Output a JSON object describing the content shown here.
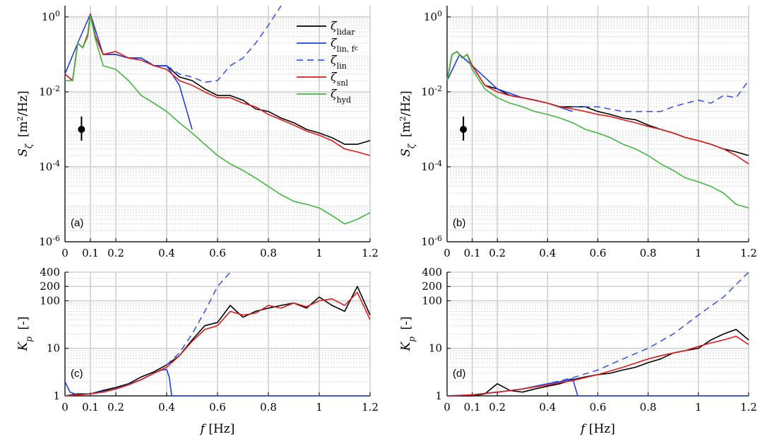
{
  "chart_data": [
    {
      "panel": "(a)",
      "type": "line",
      "yscale": "log",
      "xlim": [
        0,
        1.2
      ],
      "ylim": [
        1e-06,
        2
      ],
      "xticks": [
        0,
        0.1,
        0.2,
        0.4,
        0.6,
        0.8,
        1,
        1.2
      ],
      "xtick_labels": [
        "0",
        "0.1",
        "0.2",
        "0.4",
        "0.6",
        "0.8",
        "1",
        "1.2"
      ],
      "yticks": [
        1e-06,
        0.0001,
        0.01,
        1
      ],
      "ytick_labels": [
        [
          "10",
          "-6"
        ],
        [
          "10",
          "-4"
        ],
        [
          "10",
          "-2"
        ],
        [
          "10",
          "0"
        ]
      ],
      "ylabel": "S_ζ [m²/Hz]",
      "grid": true,
      "legend": "top-right",
      "errorbar": {
        "x": 0.065,
        "y": 0.001,
        "ylow": 0.0005,
        "yhigh": 0.0022
      },
      "series": [
        {
          "name": "ζ lidar",
          "color": "#000000",
          "x": [
            0,
            0.03,
            0.05,
            0.07,
            0.09,
            0.1,
            0.12,
            0.15,
            0.2,
            0.25,
            0.3,
            0.35,
            0.4,
            0.45,
            0.5,
            0.55,
            0.6,
            0.65,
            0.7,
            0.75,
            0.8,
            0.85,
            0.9,
            0.95,
            1.0,
            1.05,
            1.1,
            1.15,
            1.2
          ],
          "y": [
            0.03,
            0.02,
            0.2,
            0.15,
            0.35,
            1.2,
            0.3,
            0.1,
            0.1,
            0.08,
            0.08,
            0.05,
            0.05,
            0.025,
            0.02,
            0.012,
            0.008,
            0.008,
            0.006,
            0.0035,
            0.003,
            0.002,
            0.0015,
            0.001,
            0.0008,
            0.0006,
            0.0004,
            0.0004,
            0.0005
          ]
        },
        {
          "name": "ζ lin, f_c",
          "color": "#1f3fe0",
          "x": [
            0,
            0.05,
            0.1,
            0.15,
            0.2,
            0.25,
            0.3,
            0.35,
            0.4,
            0.45,
            0.5
          ],
          "y": [
            0.03,
            0.2,
            1.2,
            0.1,
            0.1,
            0.08,
            0.08,
            0.05,
            0.05,
            0.015,
            0.001
          ]
        },
        {
          "name": "ζ lin",
          "color": "#3b57e6",
          "dash": true,
          "x": [
            0.4,
            0.45,
            0.5,
            0.55,
            0.6,
            0.65,
            0.7,
            0.75,
            0.8,
            0.85
          ],
          "y": [
            0.05,
            0.03,
            0.025,
            0.018,
            0.02,
            0.05,
            0.08,
            0.2,
            0.6,
            2.0
          ]
        },
        {
          "name": "ζ snl",
          "color": "#e01b1b",
          "x": [
            0,
            0.03,
            0.05,
            0.07,
            0.09,
            0.1,
            0.12,
            0.15,
            0.2,
            0.25,
            0.3,
            0.35,
            0.4,
            0.45,
            0.5,
            0.55,
            0.6,
            0.65,
            0.7,
            0.75,
            0.8,
            0.85,
            0.9,
            0.95,
            1.0,
            1.05,
            1.1,
            1.15,
            1.2
          ],
          "y": [
            0.03,
            0.02,
            0.2,
            0.15,
            0.35,
            1.2,
            0.3,
            0.1,
            0.12,
            0.08,
            0.07,
            0.05,
            0.04,
            0.02,
            0.015,
            0.01,
            0.007,
            0.007,
            0.005,
            0.004,
            0.0025,
            0.0018,
            0.0013,
            0.0009,
            0.0007,
            0.0005,
            0.0003,
            0.00025,
            0.0002
          ]
        },
        {
          "name": "ζ hyd",
          "color": "#3fb83f",
          "x": [
            0,
            0.03,
            0.05,
            0.07,
            0.09,
            0.1,
            0.12,
            0.15,
            0.2,
            0.25,
            0.3,
            0.35,
            0.4,
            0.45,
            0.5,
            0.55,
            0.6,
            0.65,
            0.7,
            0.75,
            0.8,
            0.85,
            0.9,
            0.95,
            1.0,
            1.05,
            1.1,
            1.15,
            1.2
          ],
          "y": [
            0.02,
            0.02,
            0.2,
            0.15,
            0.3,
            1.1,
            0.25,
            0.05,
            0.04,
            0.02,
            0.008,
            0.005,
            0.003,
            0.0015,
            0.0008,
            0.0004,
            0.0002,
            0.00012,
            8e-05,
            5e-05,
            3e-05,
            1.8e-05,
            1.2e-05,
            1e-05,
            8e-06,
            5e-06,
            3e-06,
            4e-06,
            6e-06
          ]
        }
      ]
    },
    {
      "panel": "(b)",
      "type": "line",
      "yscale": "log",
      "xlim": [
        0,
        1.2
      ],
      "ylim": [
        1e-06,
        2
      ],
      "xticks": [
        0,
        0.1,
        0.2,
        0.4,
        0.6,
        0.8,
        1,
        1.2
      ],
      "xtick_labels": [
        "0",
        "0.1",
        "0.2",
        "0.4",
        "0.6",
        "0.8",
        "1",
        "1.2"
      ],
      "yticks": [
        1e-06,
        0.0001,
        0.01,
        1
      ],
      "ytick_labels": [
        [
          "10",
          "-6"
        ],
        [
          "10",
          "-4"
        ],
        [
          "10",
          "-2"
        ],
        [
          "10",
          "0"
        ]
      ],
      "ylabel": "S_ζ [m²/Hz]",
      "grid": true,
      "errorbar": {
        "x": 0.065,
        "y": 0.001,
        "ylow": 0.0005,
        "yhigh": 0.0022
      },
      "series": [
        {
          "name": "ζ lidar",
          "color": "#000000",
          "x": [
            0,
            0.02,
            0.04,
            0.06,
            0.08,
            0.1,
            0.15,
            0.2,
            0.25,
            0.3,
            0.35,
            0.4,
            0.45,
            0.5,
            0.55,
            0.6,
            0.65,
            0.7,
            0.75,
            0.8,
            0.85,
            0.9,
            0.95,
            1.0,
            1.05,
            1.1,
            1.15,
            1.2
          ],
          "y": [
            0.02,
            0.1,
            0.12,
            0.08,
            0.1,
            0.05,
            0.015,
            0.012,
            0.008,
            0.007,
            0.006,
            0.005,
            0.004,
            0.004,
            0.004,
            0.003,
            0.0025,
            0.002,
            0.0018,
            0.0013,
            0.001,
            0.0008,
            0.0006,
            0.0005,
            0.0004,
            0.0003,
            0.00025,
            0.0002
          ]
        },
        {
          "name": "ζ lin, f_c",
          "color": "#1f3fe0",
          "x": [
            0,
            0.05,
            0.1,
            0.2,
            0.3,
            0.4,
            0.5
          ],
          "y": [
            0.02,
            0.1,
            0.05,
            0.012,
            0.007,
            0.005,
            0.003
          ]
        },
        {
          "name": "ζ lin",
          "color": "#3b57e6",
          "dash": true,
          "x": [
            0.5,
            0.6,
            0.7,
            0.8,
            0.85,
            0.9,
            0.95,
            1.0,
            1.05,
            1.1,
            1.15,
            1.2
          ],
          "y": [
            0.004,
            0.004,
            0.003,
            0.003,
            0.003,
            0.004,
            0.005,
            0.006,
            0.005,
            0.008,
            0.007,
            0.02
          ]
        },
        {
          "name": "ζ snl",
          "color": "#e01b1b",
          "x": [
            0,
            0.02,
            0.04,
            0.06,
            0.08,
            0.1,
            0.15,
            0.2,
            0.25,
            0.3,
            0.35,
            0.4,
            0.45,
            0.5,
            0.55,
            0.6,
            0.65,
            0.7,
            0.75,
            0.8,
            0.85,
            0.9,
            0.95,
            1.0,
            1.05,
            1.1,
            1.15,
            1.2
          ],
          "y": [
            0.02,
            0.1,
            0.12,
            0.08,
            0.1,
            0.05,
            0.015,
            0.01,
            0.008,
            0.007,
            0.006,
            0.005,
            0.004,
            0.0035,
            0.003,
            0.0025,
            0.0022,
            0.0018,
            0.0015,
            0.0012,
            0.001,
            0.0008,
            0.0006,
            0.0005,
            0.0004,
            0.0003,
            0.0002,
            0.00012
          ]
        },
        {
          "name": "ζ hyd",
          "color": "#3fb83f",
          "x": [
            0,
            0.02,
            0.04,
            0.06,
            0.08,
            0.1,
            0.15,
            0.2,
            0.25,
            0.3,
            0.35,
            0.4,
            0.45,
            0.5,
            0.55,
            0.6,
            0.65,
            0.7,
            0.75,
            0.8,
            0.85,
            0.9,
            0.95,
            1.0,
            1.05,
            1.1,
            1.15,
            1.2
          ],
          "y": [
            0.02,
            0.1,
            0.12,
            0.08,
            0.1,
            0.04,
            0.012,
            0.007,
            0.005,
            0.004,
            0.003,
            0.0025,
            0.002,
            0.0015,
            0.001,
            0.0008,
            0.0006,
            0.0004,
            0.0003,
            0.0002,
            0.00012,
            8e-05,
            5e-05,
            4e-05,
            3e-05,
            2e-05,
            1e-05,
            8e-06
          ]
        }
      ]
    },
    {
      "panel": "(c)",
      "type": "line",
      "yscale": "log",
      "xlim": [
        0,
        1.2
      ],
      "ylim": [
        1,
        400
      ],
      "xticks": [
        0,
        0.1,
        0.2,
        0.4,
        0.6,
        0.8,
        1,
        1.2
      ],
      "xtick_labels": [
        "0",
        "0.1",
        "0.2",
        "0.4",
        "0.6",
        "0.8",
        "1",
        "1.2"
      ],
      "yticks": [
        1,
        10,
        100,
        200,
        400
      ],
      "ytick_labels": [
        "1",
        "10",
        "100",
        "200",
        "400"
      ],
      "xlabel": "f [Hz]",
      "ylabel": "K_p [-]",
      "grid": true,
      "series": [
        {
          "name": "ζ lidar",
          "color": "#000000",
          "x": [
            0,
            0.05,
            0.1,
            0.15,
            0.2,
            0.25,
            0.3,
            0.35,
            0.4,
            0.45,
            0.5,
            0.55,
            0.6,
            0.65,
            0.7,
            0.75,
            0.8,
            0.85,
            0.9,
            0.95,
            1.0,
            1.05,
            1.1,
            1.15,
            1.2
          ],
          "y": [
            1,
            1.1,
            1.1,
            1.3,
            1.5,
            1.8,
            2.5,
            3.2,
            4.5,
            7,
            15,
            30,
            35,
            80,
            45,
            60,
            70,
            80,
            90,
            70,
            120,
            80,
            60,
            200,
            50
          ]
        },
        {
          "name": "ζ lin, f_c",
          "color": "#1f3fe0",
          "x": [
            0,
            0.02,
            0.05,
            0.1,
            0.2,
            0.3,
            0.35,
            0.38,
            0.4,
            0.41,
            0.42,
            0.5,
            0.8,
            1.2
          ],
          "y": [
            2,
            1.2,
            1.05,
            1.1,
            1.4,
            2.2,
            3,
            3.5,
            3.6,
            2.5,
            1,
            1,
            1,
            1
          ]
        },
        {
          "name": "ζ lin",
          "color": "#3b57e6",
          "dash": true,
          "x": [
            0.4,
            0.45,
            0.5,
            0.55,
            0.6,
            0.65
          ],
          "y": [
            4.5,
            8,
            20,
            60,
            200,
            400
          ]
        },
        {
          "name": "ζ snl",
          "color": "#e01b1b",
          "x": [
            0,
            0.05,
            0.1,
            0.15,
            0.2,
            0.25,
            0.3,
            0.35,
            0.4,
            0.45,
            0.5,
            0.55,
            0.6,
            0.65,
            0.7,
            0.75,
            0.8,
            0.85,
            0.9,
            0.95,
            1.0,
            1.05,
            1.1,
            1.15,
            1.2
          ],
          "y": [
            1,
            1.05,
            1.1,
            1.2,
            1.4,
            1.7,
            2.2,
            3,
            4,
            7,
            14,
            25,
            30,
            60,
            50,
            55,
            80,
            70,
            90,
            75,
            100,
            110,
            80,
            150,
            40
          ]
        }
      ]
    },
    {
      "panel": "(d)",
      "type": "line",
      "yscale": "log",
      "xlim": [
        0,
        1.2
      ],
      "ylim": [
        1,
        400
      ],
      "xticks": [
        0,
        0.1,
        0.2,
        0.4,
        0.6,
        0.8,
        1,
        1.2
      ],
      "xtick_labels": [
        "0",
        "0.1",
        "0.2",
        "0.4",
        "0.6",
        "0.8",
        "1",
        "1.2"
      ],
      "yticks": [
        1,
        10,
        100,
        200,
        400
      ],
      "ytick_labels": [
        "1",
        "10",
        "100",
        "200",
        "400"
      ],
      "xlabel": "f [Hz]",
      "ylabel": "K_p [-]",
      "grid": true,
      "series": [
        {
          "name": "ζ lidar",
          "color": "#000000",
          "x": [
            0,
            0.1,
            0.15,
            0.2,
            0.25,
            0.3,
            0.35,
            0.4,
            0.45,
            0.5,
            0.55,
            0.6,
            0.65,
            0.7,
            0.75,
            0.8,
            0.85,
            0.9,
            0.95,
            1.0,
            1.05,
            1.1,
            1.15,
            1.2
          ],
          "y": [
            1,
            1,
            1.1,
            1.8,
            1.3,
            1.2,
            1.4,
            1.6,
            1.8,
            2.2,
            2.5,
            2.8,
            3,
            3.5,
            4,
            5,
            6,
            8,
            9,
            10,
            15,
            20,
            25,
            15
          ]
        },
        {
          "name": "ζ lin, f_c",
          "color": "#1f3fe0",
          "x": [
            0,
            0.1,
            0.2,
            0.3,
            0.4,
            0.45,
            0.5,
            0.51,
            0.52,
            0.6,
            0.8,
            1.0,
            1.2
          ],
          "y": [
            1,
            1.05,
            1.2,
            1.4,
            1.8,
            2,
            2.3,
            1.5,
            1,
            1,
            1,
            1,
            1
          ]
        },
        {
          "name": "ζ lin",
          "color": "#3b57e6",
          "dash": true,
          "x": [
            0,
            0.1,
            0.2,
            0.3,
            0.4,
            0.5,
            0.6,
            0.7,
            0.8,
            0.9,
            1.0,
            1.1,
            1.2
          ],
          "y": [
            1,
            1.05,
            1.2,
            1.4,
            1.8,
            2.4,
            3.5,
            6,
            10,
            20,
            50,
            120,
            400
          ]
        },
        {
          "name": "ζ snl",
          "color": "#e01b1b",
          "x": [
            0,
            0.1,
            0.2,
            0.3,
            0.4,
            0.5,
            0.6,
            0.7,
            0.8,
            0.85,
            0.9,
            0.95,
            1.0,
            1.05,
            1.1,
            1.15,
            1.2
          ],
          "y": [
            1,
            1.05,
            1.2,
            1.4,
            1.7,
            2.1,
            2.8,
            4,
            6,
            7,
            8,
            9,
            11,
            13,
            15,
            18,
            12
          ]
        }
      ]
    }
  ],
  "legend": {
    "entries": [
      {
        "symbol": "ζ",
        "sub": "lidar",
        "color": "#000000",
        "dash": false
      },
      {
        "symbol": "ζ",
        "sub": "lin, f",
        "subsub": "c",
        "color": "#1f3fe0",
        "dash": false
      },
      {
        "symbol": "ζ",
        "sub": "lin",
        "color": "#3b57e6",
        "dash": true
      },
      {
        "symbol": "ζ",
        "sub": "snl",
        "color": "#e01b1b",
        "dash": false
      },
      {
        "symbol": "ζ",
        "sub": "hyd",
        "color": "#3fb83f",
        "dash": false
      }
    ]
  }
}
